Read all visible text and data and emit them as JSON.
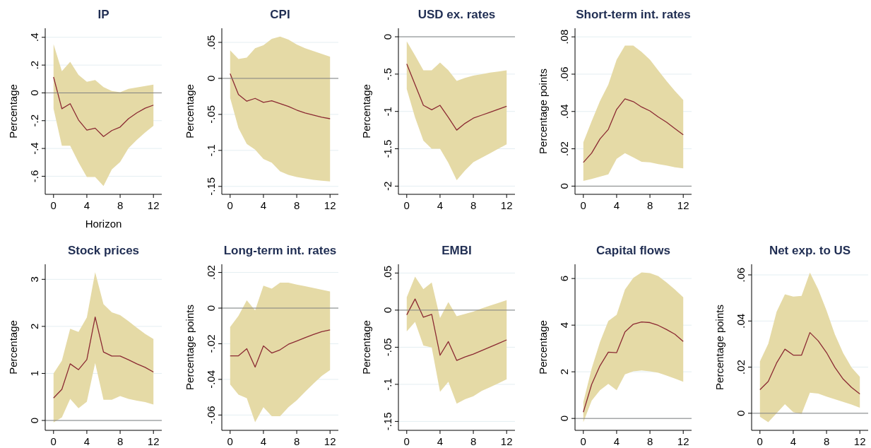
{
  "chart_data": [
    {
      "type": "line",
      "title": "IP",
      "xlabel": "Horizon",
      "ylabel": "Percentage",
      "x": [
        0,
        1,
        2,
        3,
        4,
        5,
        6,
        7,
        8,
        9,
        10,
        11,
        12
      ],
      "xlim": [
        -1,
        13
      ],
      "xticks": [
        0,
        4,
        8,
        12
      ],
      "ylim": [
        -0.73,
        0.465
      ],
      "yticks": [
        {
          "value": -0.6,
          "label": "-.6"
        },
        {
          "value": -0.4,
          "label": "-.4"
        },
        {
          "value": -0.2,
          "label": "-.2"
        },
        0,
        {
          "value": 0.2,
          "label": ".2"
        },
        {
          "value": 0.4,
          "label": ".4"
        }
      ],
      "grid": "y",
      "ref_lines": [
        {
          "axis": "y",
          "value": 0,
          "color": "#808080"
        }
      ],
      "series": [
        {
          "color": "#8b2a33",
          "values": [
            0.114,
            -0.114,
            -0.078,
            -0.195,
            -0.268,
            -0.254,
            -0.314,
            -0.271,
            -0.246,
            -0.186,
            -0.144,
            -0.11,
            -0.088
          ],
          "lower": [
            -0.114,
            -0.381,
            -0.381,
            -0.5,
            -0.605,
            -0.605,
            -0.67,
            -0.551,
            -0.497,
            -0.398,
            -0.339,
            -0.285,
            -0.237
          ],
          "upper": [
            0.35,
            0.156,
            0.224,
            0.13,
            0.08,
            0.093,
            0.042,
            0.014,
            0.005,
            0.029,
            0.039,
            0.049,
            0.059
          ]
        }
      ]
    },
    {
      "type": "line",
      "title": "CPI",
      "ylabel": "Percentage",
      "x": [
        0,
        1,
        2,
        3,
        4,
        5,
        6,
        7,
        8,
        9,
        10,
        11,
        12
      ],
      "xlim": [
        -1,
        13
      ],
      "xticks": [
        0,
        4,
        8,
        12
      ],
      "ylim": [
        -0.161,
        0.0696
      ],
      "yticks": [
        {
          "value": -0.15,
          "label": "-.15"
        },
        {
          "value": -0.1,
          "label": "-.1"
        },
        {
          "value": -0.05,
          "label": "-.05"
        },
        0,
        {
          "value": 0.05,
          "label": ".05"
        }
      ],
      "grid": "y",
      "ref_lines": [
        {
          "axis": "y",
          "value": 0,
          "color": "#808080"
        }
      ],
      "series": [
        {
          "color": "#8b2a33",
          "values": [
            0.0065,
            -0.0225,
            -0.0317,
            -0.0278,
            -0.0333,
            -0.031,
            -0.035,
            -0.039,
            -0.044,
            -0.048,
            -0.051,
            -0.054,
            -0.056
          ],
          "lower": [
            -0.027,
            -0.069,
            -0.091,
            -0.099,
            -0.112,
            -0.117,
            -0.129,
            -0.134,
            -0.137,
            -0.139,
            -0.141,
            -0.142,
            -0.143
          ],
          "upper": [
            0.039,
            0.027,
            0.029,
            0.042,
            0.046,
            0.055,
            0.058,
            0.054,
            0.047,
            0.042,
            0.038,
            0.034,
            0.03
          ]
        }
      ]
    },
    {
      "type": "line",
      "title": "USD ex. rates",
      "ylabel": "Percentage",
      "x": [
        0,
        1,
        2,
        3,
        4,
        5,
        6,
        7,
        8,
        9,
        10,
        11,
        12
      ],
      "xlim": [
        -1,
        13
      ],
      "xticks": [
        0,
        4,
        8,
        12
      ],
      "ylim": [
        -2.11,
        0.114
      ],
      "yticks": [
        -2,
        {
          "value": -1.5,
          "label": "-1.5"
        },
        -1,
        {
          "value": -0.5,
          "label": "-.5"
        },
        0
      ],
      "grid": "y",
      "ref_lines": [
        {
          "axis": "y",
          "value": 0,
          "color": "#808080"
        }
      ],
      "series": [
        {
          "color": "#8b2a33",
          "values": [
            -0.364,
            -0.64,
            -0.918,
            -0.978,
            -0.918,
            -1.08,
            -1.25,
            -1.16,
            -1.09,
            -1.05,
            -1.01,
            -0.97,
            -0.93
          ],
          "lower": [
            -0.7,
            -1.08,
            -1.39,
            -1.5,
            -1.5,
            -1.69,
            -1.92,
            -1.79,
            -1.68,
            -1.62,
            -1.56,
            -1.5,
            -1.44
          ],
          "upper": [
            -0.06,
            -0.25,
            -0.45,
            -0.45,
            -0.345,
            -0.45,
            -0.59,
            -0.55,
            -0.52,
            -0.5,
            -0.48,
            -0.465,
            -0.45
          ]
        }
      ]
    },
    {
      "type": "line",
      "title": "Short-term int. rates",
      "ylabel": "Percentage points",
      "x": [
        0,
        1,
        2,
        3,
        4,
        5,
        6,
        7,
        8,
        9,
        10,
        11,
        12
      ],
      "xlim": [
        -1,
        13
      ],
      "xticks": [
        0,
        4,
        8,
        12
      ],
      "ylim": [
        -0.0044,
        0.0846
      ],
      "yticks": [
        0,
        {
          "value": 0.02,
          "label": ".02"
        },
        {
          "value": 0.04,
          "label": ".04"
        },
        {
          "value": 0.06,
          "label": ".06"
        },
        {
          "value": 0.08,
          "label": ".08"
        }
      ],
      "grid": "y",
      "ref_lines": [
        {
          "axis": "y",
          "value": 0,
          "color": "#808080"
        }
      ],
      "series": [
        {
          "color": "#8b2a33",
          "values": [
            0.0127,
            0.0177,
            0.0253,
            0.0304,
            0.0411,
            0.0468,
            0.0453,
            0.0424,
            0.0403,
            0.0371,
            0.0342,
            0.0308,
            0.0275
          ],
          "lower": [
            0.0028,
            0.0038,
            0.0051,
            0.0063,
            0.0146,
            0.0177,
            0.0154,
            0.013,
            0.0127,
            0.0118,
            0.011,
            0.0101,
            0.0095
          ],
          "upper": [
            0.0234,
            0.0348,
            0.0456,
            0.0544,
            0.0677,
            0.0753,
            0.0753,
            0.0719,
            0.0677,
            0.062,
            0.0563,
            0.051,
            0.0462
          ]
        }
      ]
    },
    {
      "type": "line",
      "title": "Stock prices",
      "ylabel": "Percentage",
      "x": [
        0,
        1,
        2,
        3,
        4,
        5,
        6,
        7,
        8,
        9,
        10,
        11,
        12
      ],
      "xlim": [
        -1,
        13
      ],
      "xticks": [
        0,
        4,
        8,
        12
      ],
      "ylim": [
        -0.21,
        3.32
      ],
      "yticks": [
        0,
        1,
        2,
        3
      ],
      "grid": "y",
      "ref_lines": [
        {
          "axis": "y",
          "value": 0,
          "color": "#808080"
        }
      ],
      "series": [
        {
          "color": "#8b2a33",
          "values": [
            0.477,
            0.662,
            1.204,
            1.079,
            1.295,
            2.198,
            1.455,
            1.37,
            1.37,
            1.29,
            1.204,
            1.129,
            1.029
          ],
          "lower": [
            -0.04,
            0.065,
            0.46,
            0.26,
            0.4,
            1.22,
            0.44,
            0.44,
            0.52,
            0.46,
            0.42,
            0.39,
            0.34
          ],
          "upper": [
            1.0,
            1.27,
            1.95,
            1.88,
            2.19,
            3.15,
            2.47,
            2.3,
            2.24,
            2.11,
            1.97,
            1.84,
            1.73
          ]
        }
      ]
    },
    {
      "type": "line",
      "title": "Long-term int. rates",
      "ylabel": "Percentage points",
      "x": [
        0,
        1,
        2,
        3,
        4,
        5,
        6,
        7,
        8,
        9,
        10,
        11,
        12
      ],
      "xlim": [
        -1,
        13
      ],
      "xticks": [
        0,
        4,
        8,
        12
      ],
      "ylim": [
        -0.0686,
        0.0246
      ],
      "yticks": [
        {
          "value": -0.06,
          "label": "-.06"
        },
        {
          "value": -0.04,
          "label": "-.04"
        },
        {
          "value": -0.02,
          "label": "-.02"
        },
        0,
        {
          "value": 0.02,
          "label": ".02"
        }
      ],
      "grid": "y",
      "ref_lines": [
        {
          "axis": "y",
          "value": 0,
          "color": "#808080"
        }
      ],
      "series": [
        {
          "color": "#8b2a33",
          "values": [
            -0.0268,
            -0.0268,
            -0.0228,
            -0.0331,
            -0.0212,
            -0.0252,
            -0.0234,
            -0.0203,
            -0.0185,
            -0.0166,
            -0.0148,
            -0.0132,
            -0.0122
          ],
          "lower": [
            -0.0428,
            -0.0486,
            -0.0506,
            -0.064,
            -0.0556,
            -0.0607,
            -0.0607,
            -0.0556,
            -0.0517,
            -0.047,
            -0.0424,
            -0.0381,
            -0.0348
          ],
          "upper": [
            -0.0106,
            -0.0044,
            0.0044,
            -0.0013,
            0.0126,
            0.0109,
            0.0143,
            0.0143,
            0.0132,
            0.0123,
            0.0113,
            0.0103,
            0.0093
          ]
        }
      ]
    },
    {
      "type": "line",
      "title": "EMBI",
      "ylabel": "Percentage",
      "x": [
        0,
        1,
        2,
        3,
        4,
        5,
        6,
        7,
        8,
        9,
        10,
        11,
        12
      ],
      "xlim": [
        -1,
        13
      ],
      "xticks": [
        0,
        4,
        8,
        12
      ],
      "ylim": [
        -0.162,
        0.0618
      ],
      "yticks": [
        {
          "value": -0.15,
          "label": "-.15"
        },
        {
          "value": -0.1,
          "label": "-.1"
        },
        {
          "value": -0.05,
          "label": "-.05"
        },
        0,
        {
          "value": 0.05,
          "label": ".05"
        }
      ],
      "grid": "y",
      "ref_lines": [
        {
          "axis": "y",
          "value": 0,
          "color": "#808080"
        }
      ],
      "series": [
        {
          "color": "#8b2a33",
          "values": [
            -0.0064,
            0.015,
            -0.0096,
            -0.0057,
            -0.0608,
            -0.0424,
            -0.0678,
            -0.063,
            -0.0592,
            -0.0545,
            -0.0497,
            -0.0449,
            -0.0401
          ],
          "lower": [
            -0.0287,
            -0.0159,
            -0.0478,
            -0.0503,
            -0.11,
            -0.0965,
            -0.126,
            -0.12,
            -0.116,
            -0.109,
            -0.104,
            -0.0987,
            -0.0933
          ],
          "upper": [
            0.0172,
            0.0452,
            0.0283,
            0.0373,
            -0.0105,
            0.0108,
            -0.0083,
            -0.0051,
            -0.0019,
            0.0022,
            0.006,
            0.0096,
            0.0134
          ]
        }
      ]
    },
    {
      "type": "line",
      "title": "Capital flows",
      "ylabel": "Percentage",
      "x": [
        0,
        1,
        2,
        3,
        4,
        5,
        6,
        7,
        8,
        9,
        10,
        11,
        12
      ],
      "xlim": [
        -1,
        13
      ],
      "xticks": [
        0,
        4,
        8,
        12
      ],
      "ylim": [
        -0.51,
        6.61
      ],
      "yticks": [
        0,
        2,
        4,
        6
      ],
      "grid": "y",
      "ref_lines": [
        {
          "axis": "y",
          "value": 0,
          "color": "#808080"
        }
      ],
      "series": [
        {
          "color": "#8b2a33",
          "values": [
            0.27,
            1.46,
            2.26,
            2.84,
            2.82,
            3.71,
            4.04,
            4.14,
            4.11,
            3.99,
            3.81,
            3.61,
            3.3
          ],
          "lower": [
            -0.16,
            0.76,
            1.21,
            1.48,
            1.21,
            1.89,
            2.02,
            2.06,
            2.02,
            1.96,
            1.84,
            1.71,
            1.57
          ],
          "upper": [
            0.7,
            2.14,
            3.28,
            4.18,
            4.44,
            5.53,
            6.03,
            6.26,
            6.23,
            6.1,
            5.83,
            5.53,
            5.19
          ]
        }
      ]
    },
    {
      "type": "line",
      "title": "Net exp. to US",
      "ylabel": "Percentage points",
      "x": [
        0,
        1,
        2,
        3,
        4,
        5,
        6,
        7,
        8,
        9,
        10,
        11,
        12
      ],
      "xlim": [
        -1,
        13
      ],
      "xticks": [
        0,
        4,
        8,
        12
      ],
      "ylim": [
        -0.0074,
        0.0646
      ],
      "yticks": [
        0,
        {
          "value": 0.02,
          "label": ".02"
        },
        {
          "value": 0.04,
          "label": ".04"
        },
        {
          "value": 0.06,
          "label": ".06"
        }
      ],
      "grid": "y",
      "ref_lines": [
        {
          "axis": "y",
          "value": 0,
          "color": "#808080"
        }
      ],
      "series": [
        {
          "color": "#8b2a33",
          "values": [
            0.0102,
            0.0138,
            0.0218,
            0.0278,
            0.0252,
            0.0252,
            0.035,
            0.0314,
            0.0263,
            0.0199,
            0.0148,
            0.0112,
            0.0084
          ],
          "lower": [
            -0.0015,
            -0.0039,
            0.0,
            0.0039,
            0.0005,
            -0.0003,
            0.0089,
            0.0085,
            0.0072,
            0.0061,
            0.0049,
            0.0038,
            0.0024
          ],
          "upper": [
            0.0225,
            0.0301,
            0.044,
            0.0516,
            0.0506,
            0.0509,
            0.061,
            0.0537,
            0.0445,
            0.0342,
            0.0261,
            0.0199,
            0.0158
          ]
        }
      ]
    }
  ]
}
